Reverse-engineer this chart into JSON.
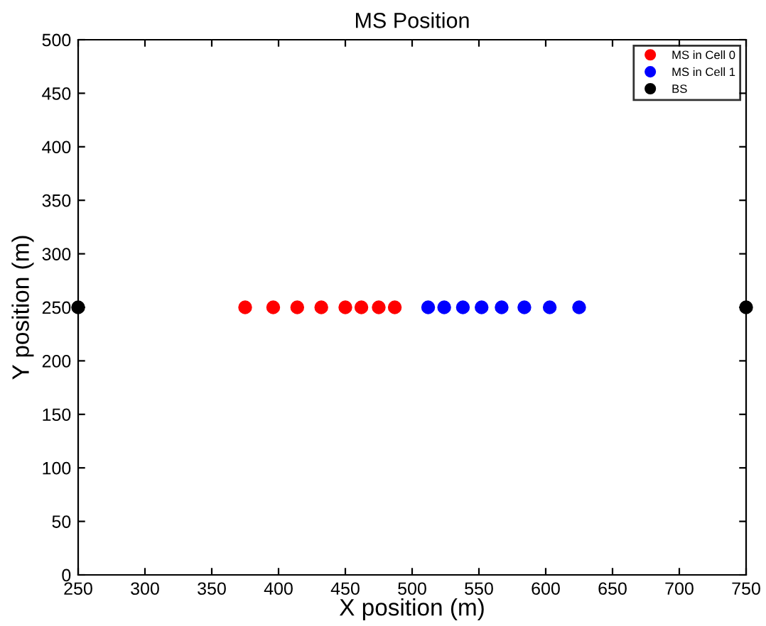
{
  "chart_data": {
    "type": "scatter",
    "title": "MS Position",
    "xlabel": "X position (m)",
    "ylabel": "Y position (m)",
    "xlim": [
      250,
      750
    ],
    "xticks": [
      250,
      300,
      350,
      400,
      450,
      500,
      550,
      600,
      650,
      700,
      750
    ],
    "ylim": [
      0,
      500
    ],
    "yticks": [
      0,
      50,
      100,
      150,
      200,
      250,
      300,
      350,
      400,
      450,
      500
    ],
    "grid": false,
    "legend": "top right",
    "marker": "circle",
    "series": [
      {
        "name": "MS in Cell 0",
        "color": "#ff0000",
        "x": [
          375,
          396,
          414,
          432,
          450,
          462,
          475,
          487
        ],
        "values": [
          250,
          250,
          250,
          250,
          250,
          250,
          250,
          250
        ]
      },
      {
        "name": "MS in Cell 1",
        "color": "#0000ff",
        "x": [
          512,
          524,
          538,
          552,
          567,
          584,
          603,
          625
        ],
        "values": [
          250,
          250,
          250,
          250,
          250,
          250,
          250,
          250
        ]
      },
      {
        "name": "BS",
        "color": "#000000",
        "x": [
          250,
          750
        ],
        "values": [
          250,
          250
        ]
      }
    ]
  }
}
